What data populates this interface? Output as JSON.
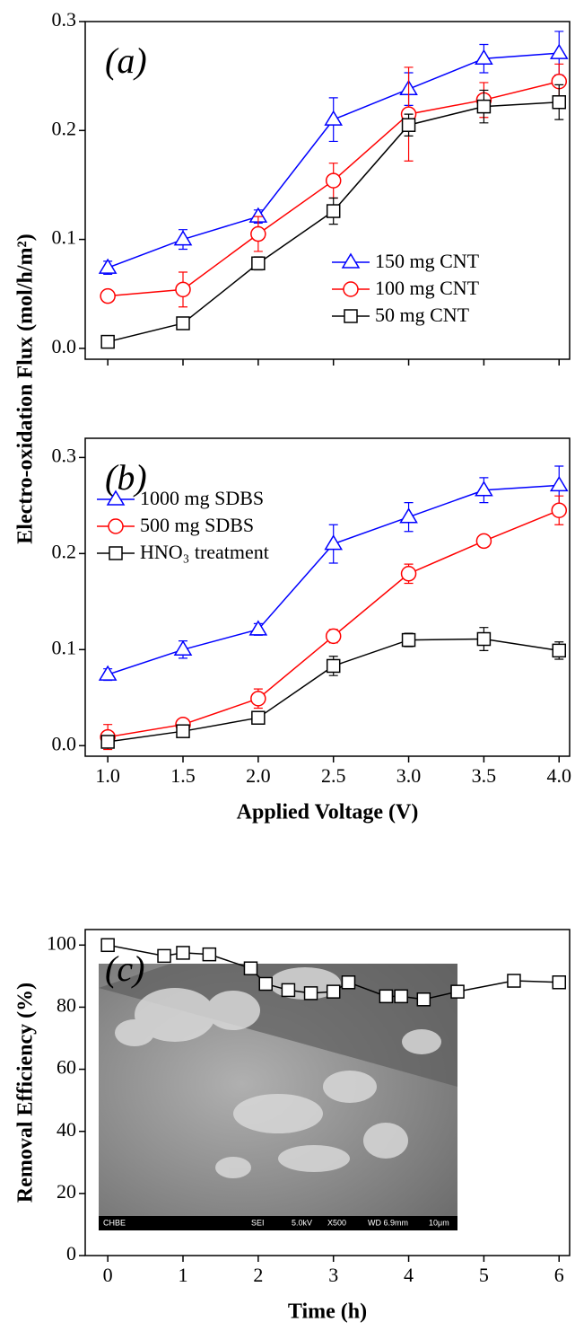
{
  "chart_data": [
    {
      "type": "line",
      "panel_label": "(a)",
      "legend": "center",
      "x": [
        1.0,
        1.5,
        2.0,
        2.5,
        3.0,
        3.5,
        4.0
      ],
      "xlim": [
        0.85,
        4.07
      ],
      "ylim": [
        -0.01,
        0.3
      ],
      "xticks": [
        1.0,
        1.5,
        2.0,
        2.5,
        3.0,
        3.5,
        4.0
      ],
      "yticks": [
        {
          "value": 0,
          "label": "0.0"
        },
        0.1,
        0.2,
        0.3
      ],
      "series": [
        {
          "name": "150 mg CNT",
          "color": "#0000ff",
          "marker": "triangle",
          "values": [
            0.074,
            0.1,
            0.121,
            0.21,
            0.238,
            0.266,
            0.271
          ],
          "errors": [
            0.006,
            0.009,
            0.006,
            0.02,
            0.015,
            0.013,
            0.02
          ]
        },
        {
          "name": "100 mg CNT",
          "color": "#ff0000",
          "marker": "circle",
          "values": [
            0.048,
            0.054,
            0.105,
            0.154,
            0.215,
            0.228,
            0.245
          ],
          "errors": [
            0.005,
            0.016,
            0.016,
            0.016,
            0.043,
            0.016,
            0.016
          ]
        },
        {
          "name": "50 mg CNT",
          "color": "#000000",
          "marker": "square",
          "values": [
            0.006,
            0.023,
            0.078,
            0.126,
            0.205,
            0.222,
            0.226
          ],
          "errors": [
            0.002,
            0.005,
            0.006,
            0.012,
            0.01,
            0.015,
            0.016
          ]
        }
      ]
    },
    {
      "type": "line",
      "panel_label": "(b)",
      "legend": "upper-left",
      "ylabel": "Electro-oxidation Flux (mol/h/m²)",
      "xlabel": "Applied Voltage (V)",
      "x": [
        1.0,
        1.5,
        2.0,
        2.5,
        3.0,
        3.5,
        4.0
      ],
      "xlim": [
        0.85,
        4.07
      ],
      "ylim": [
        -0.011,
        0.32
      ],
      "xticks": [
        {
          "value": 1,
          "label": "1.0"
        },
        1.5,
        {
          "value": 2,
          "label": "2.0"
        },
        2.5,
        {
          "value": 3,
          "label": "3.0"
        },
        3.5,
        {
          "value": 4,
          "label": "4.0"
        }
      ],
      "yticks": [
        {
          "value": 0,
          "label": "0.0"
        },
        0.1,
        0.2,
        0.3
      ],
      "series": [
        {
          "name": "1000 mg SDBS",
          "color": "#0000ff",
          "marker": "triangle",
          "values": [
            0.074,
            0.1,
            0.121,
            0.21,
            0.238,
            0.266,
            0.271
          ],
          "errors": [
            0.006,
            0.009,
            0.006,
            0.02,
            0.015,
            0.013,
            0.02
          ]
        },
        {
          "name": "500 mg SDBS",
          "color": "#ff0000",
          "marker": "circle",
          "values": [
            0.009,
            0.022,
            0.049,
            0.114,
            0.179,
            0.213,
            0.245
          ],
          "errors": [
            0.013,
            0.004,
            0.01,
            0.007,
            0.01,
            0.003,
            0.015
          ]
        },
        {
          "name": "HNO₃ treatment",
          "color": "#000000",
          "marker": "square",
          "values": [
            0.004,
            0.015,
            0.029,
            0.083,
            0.11,
            0.111,
            0.099
          ],
          "errors": [
            0.003,
            0.002,
            0.003,
            0.01,
            0.007,
            0.012,
            0.009
          ]
        }
      ]
    },
    {
      "type": "line",
      "panel_label": "(c)",
      "ylabel": "Removal Efficiency (%)",
      "xlabel": "Time (h)",
      "x": [
        0,
        0.75,
        1.0,
        1.35,
        1.9,
        2.1,
        2.4,
        2.7,
        3.0,
        3.2,
        3.7,
        3.9,
        4.2,
        4.65,
        5.4,
        6.0
      ],
      "xlim": [
        -0.3,
        6.14
      ],
      "ylim": [
        0,
        105
      ],
      "xticks": [
        0,
        1,
        2,
        3,
        4,
        5,
        6
      ],
      "yticks": [
        0,
        20,
        40,
        60,
        80,
        100
      ],
      "series": [
        {
          "color": "#000000",
          "marker": "square",
          "values": [
            100,
            96.5,
            97.5,
            97,
            92.5,
            87.5,
            85.5,
            84.5,
            85,
            88,
            83.5,
            83.5,
            82.5,
            85,
            88.5,
            88
          ]
        }
      ],
      "inset": {
        "labels": [
          "CHBE",
          "SEI",
          "5.0kV",
          "X500",
          "WD 6.9mm",
          "10μm"
        ]
      }
    }
  ]
}
